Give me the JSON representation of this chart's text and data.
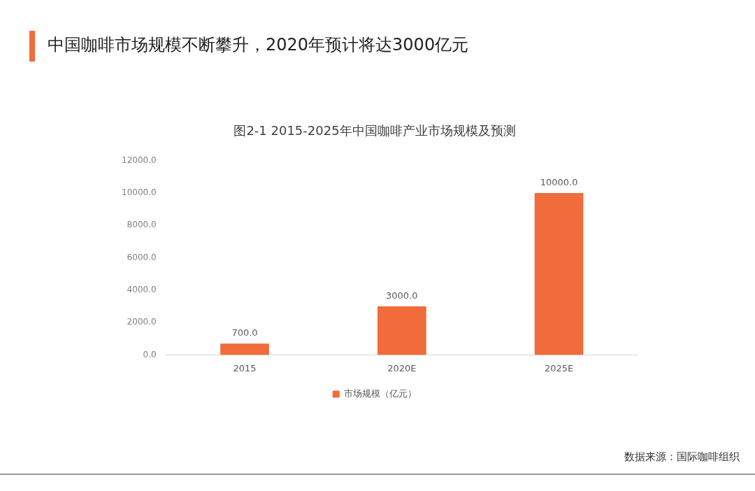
{
  "chart_data": {
    "type": "bar",
    "title": "中国咖啡市场规模不断攀升，2020年预计将达3000亿元",
    "subtitle": "图2-1 2015-2025年中国咖啡产业市场规模及预测",
    "categories": [
      "2015",
      "2020E",
      "2025E"
    ],
    "series": [
      {
        "name": "市场规模（亿元）",
        "color": "#f26b3a",
        "values": [
          700,
          3000,
          10000
        ],
        "value_labels": [
          "700.0",
          "3000.0",
          "10000.0"
        ]
      }
    ],
    "ylim": [
      0,
      12000
    ],
    "yticks": [
      {
        "value": 0,
        "label": "0.0"
      },
      {
        "value": 2000,
        "label": "2000.0"
      },
      {
        "value": 4000,
        "label": "4000.0"
      },
      {
        "value": 6000,
        "label": "6000.0"
      },
      {
        "value": 8000,
        "label": "8000.0"
      },
      {
        "value": 10000,
        "label": "10000.0"
      },
      {
        "value": 12000,
        "label": "12000.0"
      }
    ],
    "legend": "bottom",
    "annotations": [
      "数据来源：国际咖啡组织"
    ]
  }
}
